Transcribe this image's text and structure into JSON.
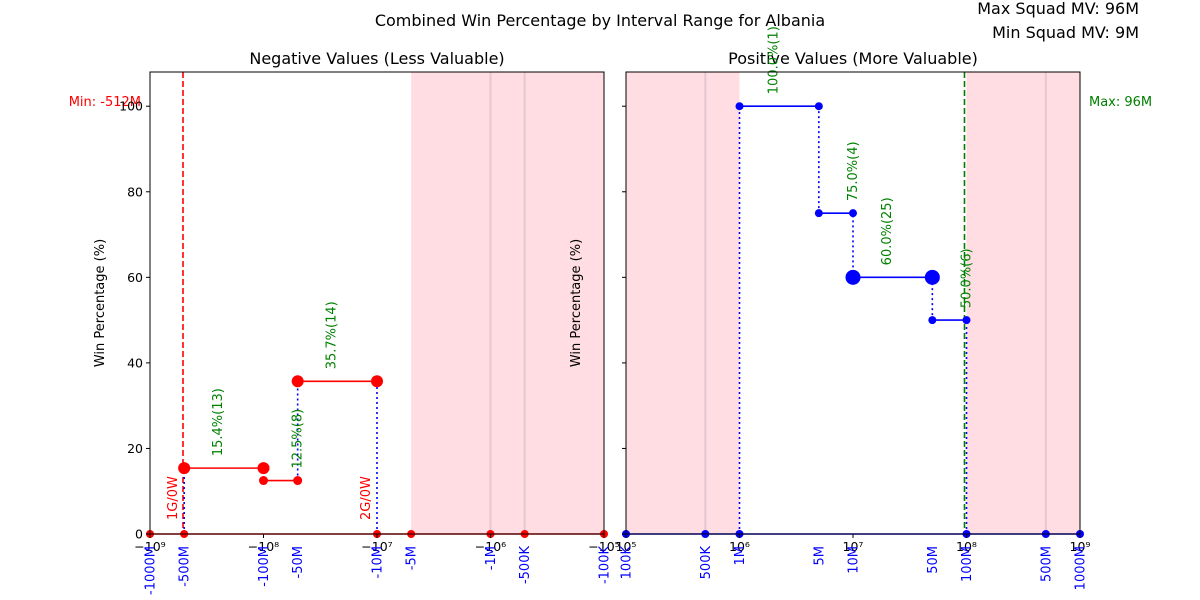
{
  "title": "Combined Win Percentage by Interval Range for Albania",
  "info": {
    "max_label": "Max Squad MV: 96M",
    "min_label": "Min Squad MV: 9M"
  },
  "colors": {
    "negative": "#ff0000",
    "positive": "#0000ff",
    "label_green": "#008000",
    "band_pink": "#ffdde2"
  },
  "chart_data": [
    {
      "type": "line",
      "subtitle": "Negative Values (Less Valuable)",
      "ylabel": "Win Percentage (%)",
      "xscale": "symlog",
      "xlim": [
        -1000000000,
        -100000
      ],
      "ylim": [
        0,
        108
      ],
      "yticks": [
        0,
        20,
        40,
        60,
        80,
        100
      ],
      "xticks_math": [
        {
          "value": -1000000000,
          "label": "−10⁹"
        },
        {
          "value": -100000000,
          "label": "−10⁸"
        },
        {
          "value": -10000000,
          "label": "−10⁷"
        },
        {
          "value": -1000000,
          "label": "−10⁶"
        },
        {
          "value": -100000,
          "label": "−10⁵"
        }
      ],
      "interval_labels": [
        {
          "value": -1000000000,
          "label": "-1000M"
        },
        {
          "value": -500000000,
          "label": "-500M"
        },
        {
          "value": -100000000,
          "label": "-100M"
        },
        {
          "value": -50000000,
          "label": "-50M"
        },
        {
          "value": -10000000,
          "label": "-10M"
        },
        {
          "value": -5000000,
          "label": "-5M"
        },
        {
          "value": -1000000,
          "label": "-1M"
        },
        {
          "value": -500000,
          "label": "-500K"
        },
        {
          "value": -100000,
          "label": "-100K"
        }
      ],
      "shaded_band": [
        -5000000,
        -100000
      ],
      "band_lines": [
        -1000000,
        -500000
      ],
      "reference_line": {
        "value": -512000000,
        "label": "Min: -512M"
      },
      "segments": [
        {
          "x0": -500000000,
          "x1": -100000000,
          "y": 15.4,
          "label": "15.4%(13)",
          "big": true
        },
        {
          "x0": -100000000,
          "x1": -50000000,
          "y": 12.5,
          "label": "12.5%(8)",
          "big": false
        },
        {
          "x0": -50000000,
          "x1": -10000000,
          "y": 35.7,
          "label": "35.7%(14)",
          "big": true
        }
      ],
      "connectors": [
        {
          "x": -500000000,
          "y0": 0,
          "y1": 15.4
        },
        {
          "x": -50000000,
          "y0": 12.5,
          "y1": 35.7
        },
        {
          "x": -10000000,
          "y0": 0,
          "y1": 35.7
        }
      ],
      "zero_points": [
        -1000000000,
        -500000000,
        -10000000,
        -5000000,
        -1000000,
        -500000,
        -100000
      ],
      "zero_labels": [
        {
          "x": -500000000,
          "label": "1G/0W"
        },
        {
          "x": -10000000,
          "label": "2G/0W"
        }
      ]
    },
    {
      "type": "line",
      "subtitle": "Positive Values (More Valuable)",
      "ylabel": "Win Percentage (%)",
      "xscale": "symlog",
      "xlim": [
        100000,
        1000000000
      ],
      "ylim": [
        0,
        108
      ],
      "yticks": [
        0,
        20,
        40,
        60,
        80,
        100
      ],
      "xticks_math": [
        {
          "value": 100000,
          "label": "10⁵"
        },
        {
          "value": 1000000,
          "label": "10⁶"
        },
        {
          "value": 10000000,
          "label": "10⁷"
        },
        {
          "value": 100000000,
          "label": "10⁸"
        },
        {
          "value": 1000000000,
          "label": "10⁹"
        }
      ],
      "interval_labels": [
        {
          "value": 100000,
          "label": "100K"
        },
        {
          "value": 500000,
          "label": "500K"
        },
        {
          "value": 1000000,
          "label": "1M"
        },
        {
          "value": 5000000,
          "label": "5M"
        },
        {
          "value": 10000000,
          "label": "10M"
        },
        {
          "value": 50000000,
          "label": "50M"
        },
        {
          "value": 100000000,
          "label": "100M"
        },
        {
          "value": 500000000,
          "label": "500M"
        },
        {
          "value": 1000000000,
          "label": "1000M"
        }
      ],
      "shaded_bands": [
        [
          100000,
          1000000
        ],
        [
          100000000,
          1000000000
        ]
      ],
      "band_lines": [
        500000,
        500000000
      ],
      "reference_line": {
        "value": 96000000,
        "label": "Max: 96M"
      },
      "segments": [
        {
          "x0": 1000000,
          "x1": 5000000,
          "y": 100.0,
          "label": "100.0%(1)",
          "big": false
        },
        {
          "x0": 5000000,
          "x1": 10000000,
          "y": 75.0,
          "label": "75.0%(4)",
          "big": false
        },
        {
          "x0": 10000000,
          "x1": 50000000,
          "y": 60.0,
          "label": "60.0%(25)",
          "big": true
        },
        {
          "x0": 50000000,
          "x1": 100000000,
          "y": 50.0,
          "label": "50.0%(6)",
          "big": false
        }
      ],
      "connectors": [
        {
          "x": 1000000,
          "y0": 0,
          "y1": 100
        },
        {
          "x": 5000000,
          "y0": 75,
          "y1": 100
        },
        {
          "x": 10000000,
          "y0": 60,
          "y1": 75
        },
        {
          "x": 50000000,
          "y0": 50,
          "y1": 60
        },
        {
          "x": 100000000,
          "y0": 0,
          "y1": 50
        }
      ],
      "zero_points": [
        100000,
        500000,
        1000000,
        100000000,
        500000000,
        1000000000
      ],
      "zero_labels": []
    }
  ]
}
